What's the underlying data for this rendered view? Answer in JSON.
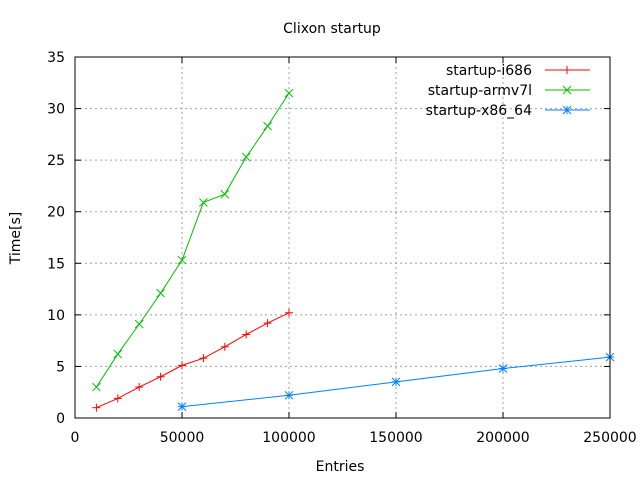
{
  "chart_data": {
    "type": "line",
    "title": "Clixon startup",
    "xlabel": "Entries",
    "ylabel": "Time[s]",
    "xlim": [
      0,
      250000
    ],
    "ylim": [
      0,
      35
    ],
    "xticks": [
      0,
      50000,
      100000,
      150000,
      200000,
      250000
    ],
    "yticks": [
      0,
      5,
      10,
      15,
      20,
      25,
      30,
      35
    ],
    "grid": true,
    "legend_position": "top-right",
    "series": [
      {
        "name": "startup-i686",
        "color": "#ff0000",
        "marker": "plus",
        "x": [
          10000,
          20000,
          30000,
          40000,
          50000,
          60000,
          70000,
          80000,
          90000,
          100000
        ],
        "y": [
          1.0,
          1.9,
          3.0,
          4.0,
          5.1,
          5.8,
          6.9,
          8.1,
          9.2,
          10.2
        ]
      },
      {
        "name": "startup-armv7l",
        "color": "#00c000",
        "marker": "cross",
        "x": [
          10000,
          20000,
          30000,
          40000,
          50000,
          60000,
          70000,
          80000,
          90000,
          100000
        ],
        "y": [
          3.0,
          6.2,
          9.1,
          12.1,
          15.3,
          20.9,
          21.7,
          25.3,
          28.3,
          31.5
        ]
      },
      {
        "name": "startup-x86_64",
        "color": "#0080ff",
        "marker": "star",
        "x": [
          50000,
          100000,
          150000,
          200000,
          250000
        ],
        "y": [
          1.1,
          2.2,
          3.5,
          4.8,
          5.9
        ]
      }
    ]
  }
}
